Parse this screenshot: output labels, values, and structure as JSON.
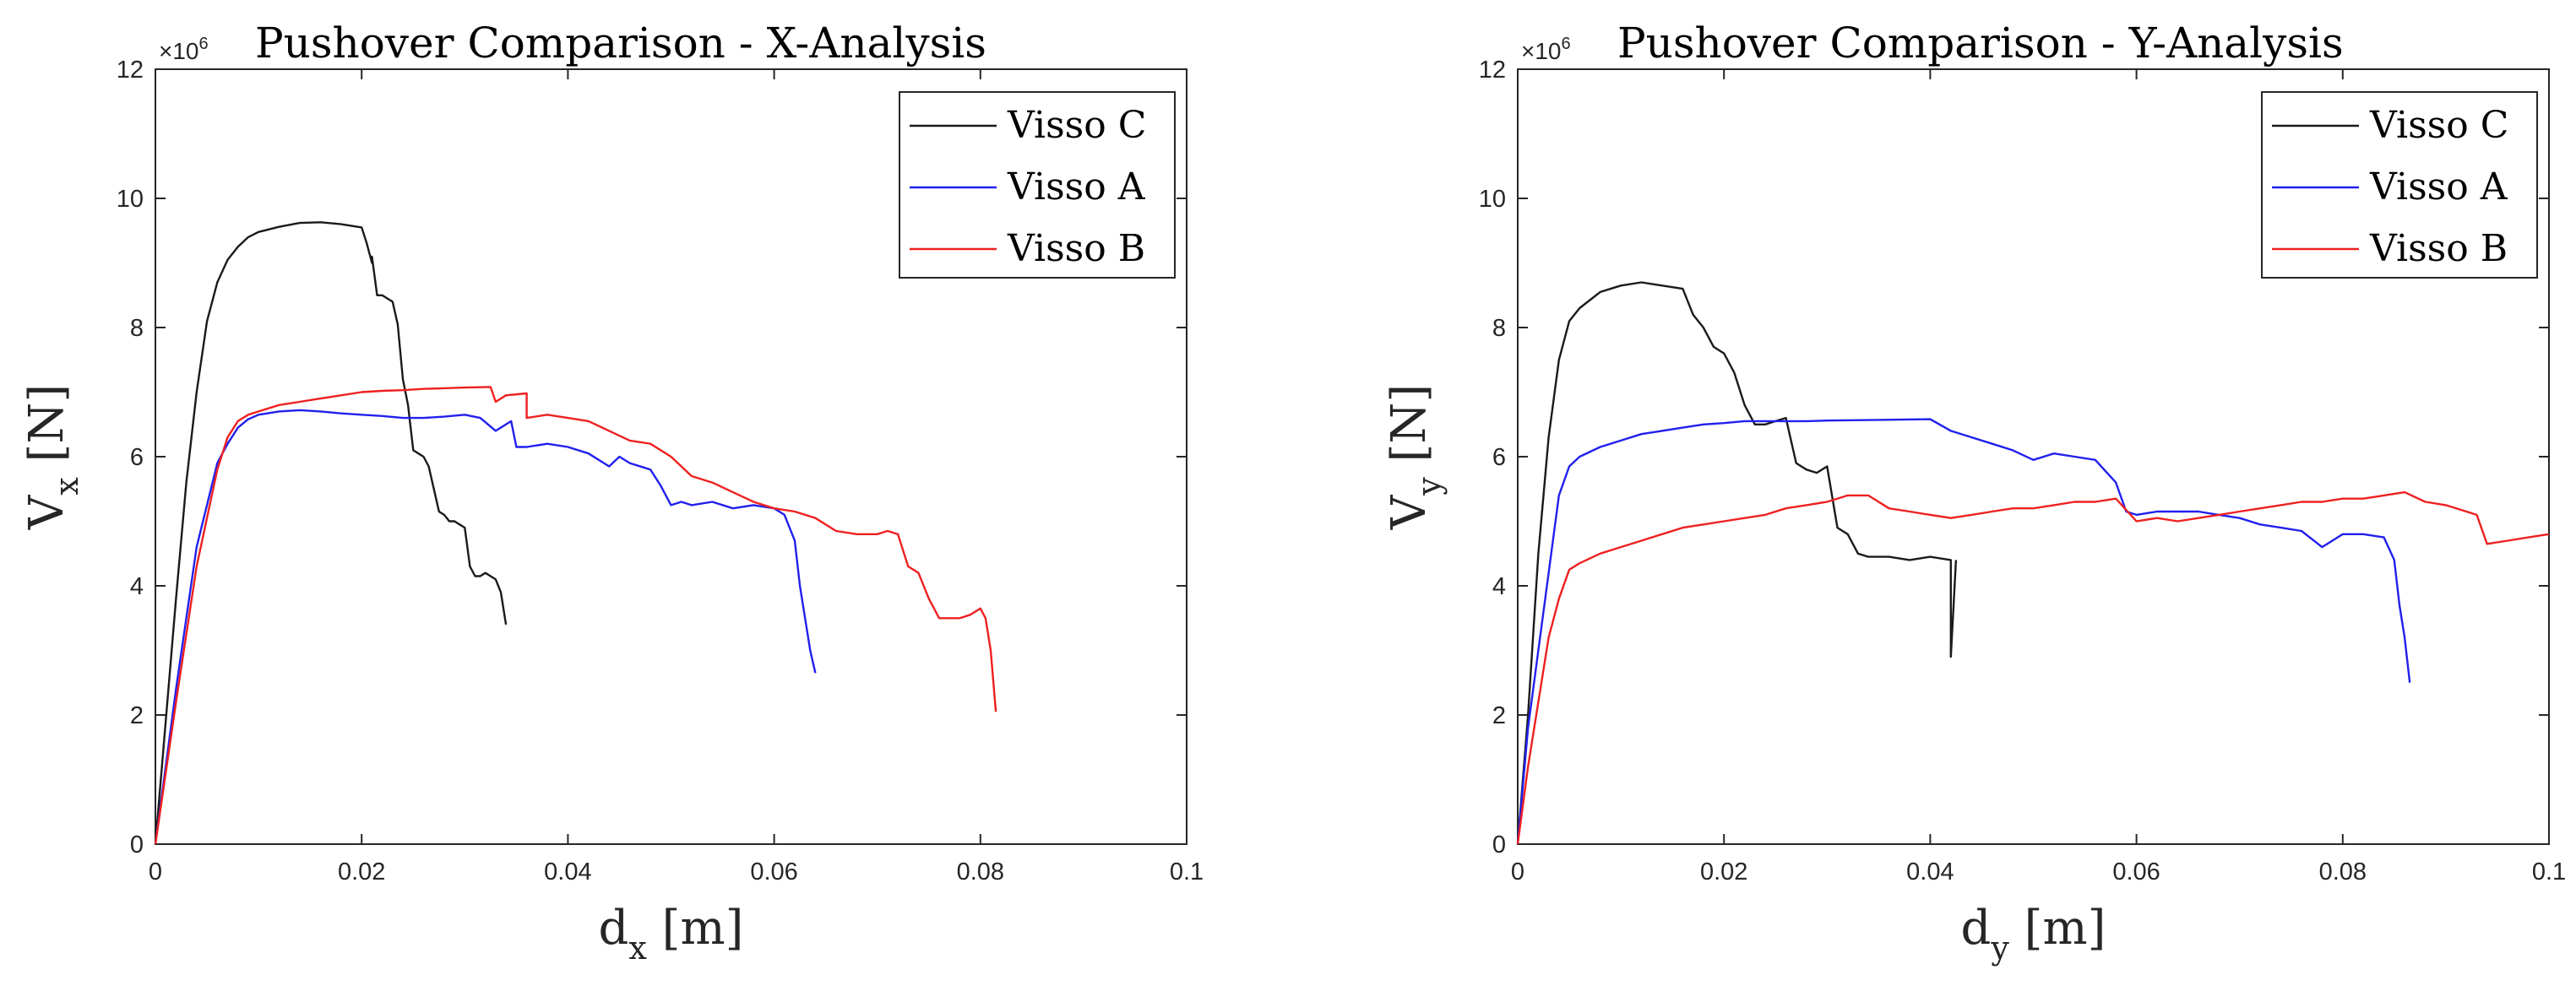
{
  "chart_data": [
    {
      "type": "line",
      "title": "Pushover Comparison - X-Analysis",
      "exponent_label": "×10",
      "exponent_power": "6",
      "ylabel_main": "V",
      "ylabel_sub": "x",
      "ylabel_unit": "[N]",
      "xlabel_main": "d",
      "xlabel_sub": "x",
      "xlabel_unit": "[m]",
      "xlim": [
        0,
        0.1
      ],
      "ylim": [
        0,
        12
      ],
      "xticks": [
        0,
        0.02,
        0.04,
        0.06,
        0.08,
        0.1
      ],
      "xtick_labels": [
        "0",
        "0.02",
        "0.04",
        "0.06",
        "0.08",
        "0.1"
      ],
      "yticks": [
        0,
        2,
        4,
        6,
        8,
        10,
        12
      ],
      "ytick_labels": [
        "0",
        "2",
        "4",
        "6",
        "8",
        "10",
        "12"
      ],
      "legend_position": "top-right",
      "series": [
        {
          "name": "Visso C",
          "color": "#1a1a1a",
          "x": [
            0,
            0.001,
            0.002,
            0.003,
            0.004,
            0.005,
            0.006,
            0.007,
            0.008,
            0.009,
            0.01,
            0.012,
            0.014,
            0.016,
            0.018,
            0.02,
            0.0205,
            0.021,
            0.021,
            0.0215,
            0.022,
            0.0225,
            0.023,
            0.0235,
            0.024,
            0.0245,
            0.025,
            0.0255,
            0.026,
            0.0265,
            0.027,
            0.0275,
            0.028,
            0.0285,
            0.029,
            0.0295,
            0.03,
            0.0305,
            0.031,
            0.0315,
            0.032,
            0.0325,
            0.033,
            0.0335,
            0.034
          ],
          "y": [
            0,
            1.9,
            3.8,
            5.6,
            7.0,
            8.1,
            8.7,
            9.05,
            9.25,
            9.4,
            9.48,
            9.56,
            9.62,
            9.63,
            9.6,
            9.55,
            9.3,
            9.0,
            9.1,
            8.5,
            8.5,
            8.45,
            8.4,
            8.05,
            7.2,
            6.8,
            6.1,
            6.05,
            6.0,
            5.85,
            5.5,
            5.15,
            5.1,
            5.0,
            5.0,
            4.95,
            4.9,
            4.3,
            4.15,
            4.15,
            4.2,
            4.15,
            4.1,
            3.9,
            3.4
          ]
        },
        {
          "name": "Visso A",
          "color": "#2020ee",
          "x": [
            0,
            0.002,
            0.004,
            0.006,
            0.007,
            0.008,
            0.009,
            0.01,
            0.012,
            0.014,
            0.016,
            0.018,
            0.02,
            0.022,
            0.024,
            0.026,
            0.028,
            0.03,
            0.0315,
            0.033,
            0.0345,
            0.035,
            0.036,
            0.038,
            0.04,
            0.042,
            0.044,
            0.045,
            0.046,
            0.048,
            0.049,
            0.05,
            0.051,
            0.052,
            0.054,
            0.056,
            0.058,
            0.06,
            0.061,
            0.062,
            0.0625,
            0.063,
            0.0635,
            0.064
          ],
          "y": [
            0,
            2.4,
            4.6,
            5.9,
            6.2,
            6.45,
            6.58,
            6.65,
            6.7,
            6.72,
            6.7,
            6.67,
            6.65,
            6.63,
            6.6,
            6.6,
            6.62,
            6.65,
            6.6,
            6.4,
            6.55,
            6.15,
            6.15,
            6.2,
            6.15,
            6.05,
            5.85,
            6.0,
            5.9,
            5.8,
            5.55,
            5.25,
            5.3,
            5.25,
            5.3,
            5.2,
            5.25,
            5.2,
            5.1,
            4.7,
            4.0,
            3.5,
            3.0,
            2.65
          ]
        },
        {
          "name": "Visso B",
          "color": "#ee2020",
          "x": [
            0,
            0.002,
            0.004,
            0.006,
            0.007,
            0.008,
            0.009,
            0.01,
            0.012,
            0.014,
            0.016,
            0.018,
            0.02,
            0.022,
            0.024,
            0.026,
            0.028,
            0.03,
            0.0325,
            0.033,
            0.034,
            0.036,
            0.036,
            0.038,
            0.04,
            0.042,
            0.044,
            0.046,
            0.048,
            0.05,
            0.052,
            0.054,
            0.056,
            0.058,
            0.06,
            0.062,
            0.064,
            0.066,
            0.068,
            0.07,
            0.071,
            0.072,
            0.073,
            0.074,
            0.075,
            0.076,
            0.078,
            0.079,
            0.08,
            0.0805,
            0.081,
            0.0815
          ],
          "y": [
            0,
            2.2,
            4.3,
            5.8,
            6.3,
            6.55,
            6.65,
            6.7,
            6.8,
            6.85,
            6.9,
            6.95,
            7.0,
            7.02,
            7.03,
            7.05,
            7.06,
            7.07,
            7.08,
            6.85,
            6.95,
            6.98,
            6.6,
            6.65,
            6.6,
            6.55,
            6.4,
            6.25,
            6.2,
            6.0,
            5.7,
            5.6,
            5.45,
            5.3,
            5.2,
            5.15,
            5.05,
            4.85,
            4.8,
            4.8,
            4.85,
            4.8,
            4.3,
            4.2,
            3.8,
            3.5,
            3.5,
            3.55,
            3.65,
            3.5,
            3.0,
            2.05
          ]
        }
      ]
    },
    {
      "type": "line",
      "title": "Pushover Comparison - Y-Analysis",
      "exponent_label": "×10",
      "exponent_power": "6",
      "ylabel_main": "V",
      "ylabel_sub": "y",
      "ylabel_unit": "[N]",
      "xlabel_main": "d",
      "xlabel_sub": "y",
      "xlabel_unit": "[m]",
      "xlim": [
        0,
        0.1
      ],
      "ylim": [
        0,
        12
      ],
      "xticks": [
        0,
        0.02,
        0.04,
        0.06,
        0.08,
        0.1
      ],
      "xtick_labels": [
        "0",
        "0.02",
        "0.04",
        "0.06",
        "0.08",
        "0.1"
      ],
      "yticks": [
        0,
        2,
        4,
        6,
        8,
        10,
        12
      ],
      "ytick_labels": [
        "0",
        "2",
        "4",
        "6",
        "8",
        "10",
        "12"
      ],
      "legend_position": "top-right",
      "series": [
        {
          "name": "Visso C",
          "color": "#1a1a1a",
          "x": [
            0,
            0.001,
            0.002,
            0.003,
            0.004,
            0.005,
            0.006,
            0.008,
            0.01,
            0.012,
            0.014,
            0.016,
            0.017,
            0.018,
            0.019,
            0.02,
            0.021,
            0.022,
            0.023,
            0.024,
            0.025,
            0.026,
            0.027,
            0.0275,
            0.028,
            0.029,
            0.03,
            0.031,
            0.0315,
            0.032,
            0.033,
            0.034,
            0.036,
            0.038,
            0.04,
            0.042,
            0.042,
            0.0425
          ],
          "y": [
            0,
            2.0,
            4.5,
            6.3,
            7.5,
            8.1,
            8.3,
            8.55,
            8.65,
            8.7,
            8.65,
            8.6,
            8.2,
            8.0,
            7.7,
            7.6,
            7.3,
            6.8,
            6.5,
            6.5,
            6.55,
            6.6,
            5.9,
            5.85,
            5.8,
            5.75,
            5.85,
            4.9,
            4.85,
            4.8,
            4.5,
            4.45,
            4.45,
            4.4,
            4.45,
            4.4,
            2.9,
            4.4
          ]
        },
        {
          "name": "Visso A",
          "color": "#2020ee",
          "x": [
            0,
            0.001,
            0.002,
            0.003,
            0.004,
            0.005,
            0.006,
            0.008,
            0.01,
            0.012,
            0.014,
            0.016,
            0.018,
            0.02,
            0.022,
            0.025,
            0.028,
            0.03,
            0.035,
            0.04,
            0.042,
            0.044,
            0.046,
            0.048,
            0.05,
            0.052,
            0.054,
            0.056,
            0.058,
            0.059,
            0.06,
            0.062,
            0.064,
            0.066,
            0.068,
            0.07,
            0.072,
            0.074,
            0.076,
            0.078,
            0.08,
            0.082,
            0.084,
            0.085,
            0.0855,
            0.086,
            0.0865
          ],
          "y": [
            0,
            1.8,
            3.0,
            4.2,
            5.4,
            5.85,
            6.0,
            6.15,
            6.25,
            6.35,
            6.4,
            6.45,
            6.5,
            6.52,
            6.55,
            6.55,
            6.55,
            6.56,
            6.57,
            6.58,
            6.4,
            6.3,
            6.2,
            6.1,
            5.95,
            6.05,
            6.0,
            5.95,
            5.6,
            5.15,
            5.1,
            5.15,
            5.15,
            5.15,
            5.1,
            5.05,
            4.95,
            4.9,
            4.85,
            4.6,
            4.8,
            4.8,
            4.75,
            4.4,
            3.7,
            3.2,
            2.5
          ]
        },
        {
          "name": "Visso B",
          "color": "#ee2020",
          "x": [
            0,
            0.001,
            0.002,
            0.003,
            0.004,
            0.005,
            0.006,
            0.008,
            0.01,
            0.012,
            0.014,
            0.016,
            0.018,
            0.02,
            0.022,
            0.024,
            0.026,
            0.028,
            0.03,
            0.032,
            0.034,
            0.036,
            0.038,
            0.04,
            0.042,
            0.044,
            0.046,
            0.048,
            0.05,
            0.052,
            0.054,
            0.056,
            0.058,
            0.06,
            0.062,
            0.064,
            0.066,
            0.068,
            0.07,
            0.072,
            0.074,
            0.076,
            0.078,
            0.08,
            0.082,
            0.084,
            0.086,
            0.088,
            0.09,
            0.092,
            0.093,
            0.094,
            0.096,
            0.098,
            0.1
          ],
          "y": [
            0,
            1.2,
            2.2,
            3.2,
            3.8,
            4.25,
            4.35,
            4.5,
            4.6,
            4.7,
            4.8,
            4.9,
            4.95,
            5.0,
            5.05,
            5.1,
            5.2,
            5.25,
            5.3,
            5.4,
            5.4,
            5.2,
            5.15,
            5.1,
            5.05,
            5.1,
            5.15,
            5.2,
            5.2,
            5.25,
            5.3,
            5.3,
            5.35,
            5.0,
            5.05,
            5.0,
            5.05,
            5.1,
            5.15,
            5.2,
            5.25,
            5.3,
            5.3,
            5.35,
            5.35,
            5.4,
            5.45,
            5.3,
            5.25,
            5.15,
            5.1,
            4.65,
            4.7,
            4.75,
            4.8
          ]
        }
      ]
    }
  ]
}
